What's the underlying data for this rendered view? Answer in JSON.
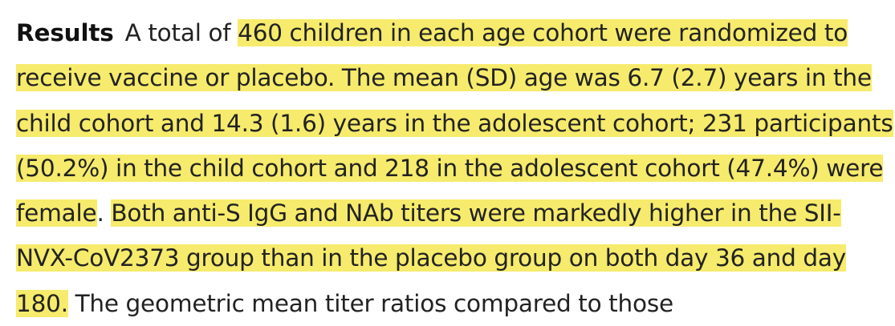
{
  "abstract": {
    "heading": "Results",
    "segments": [
      {
        "text": "A total of ",
        "highlighted": false
      },
      {
        "text": "460 children in each age cohort were randomized to receive vaccine or placebo. The mean (SD) age was 6.7 (2.7) years in the child cohort and 14.3 (1.6) years in the adolescent cohort; 231 participants (50.2%) in the child cohort and 218 in the adolescent cohort (47.4%) were female",
        "highlighted": true
      },
      {
        "text": ". ",
        "highlighted": false
      },
      {
        "text": "Both anti-S IgG and NAb titers were markedly higher in the SII-NVX-CoV2373 group than in the placebo group on both day 36 and day 180.",
        "highlighted": true
      },
      {
        "text": " The geometric mean titer ratios compared to those",
        "highlighted": false
      }
    ]
  },
  "colors": {
    "highlight": "#f6eb6c",
    "text": "#222222",
    "background": "#ffffff"
  }
}
